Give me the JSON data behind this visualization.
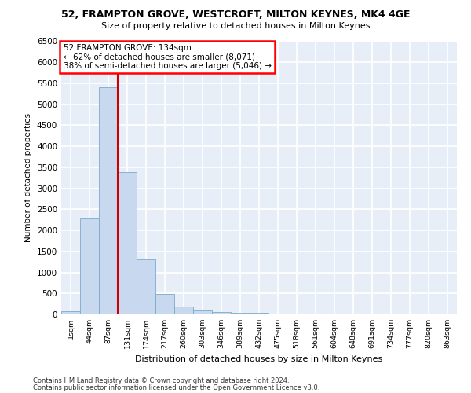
{
  "title_line1": "52, FRAMPTON GROVE, WESTCROFT, MILTON KEYNES, MK4 4GE",
  "title_line2": "Size of property relative to detached houses in Milton Keynes",
  "xlabel": "Distribution of detached houses by size in Milton Keynes",
  "ylabel": "Number of detached properties",
  "footnote1": "Contains HM Land Registry data © Crown copyright and database right 2024.",
  "footnote2": "Contains public sector information licensed under the Open Government Licence v3.0.",
  "bar_labels": [
    "1sqm",
    "44sqm",
    "87sqm",
    "131sqm",
    "174sqm",
    "217sqm",
    "260sqm",
    "303sqm",
    "346sqm",
    "389sqm",
    "432sqm",
    "475sqm",
    "518sqm",
    "561sqm",
    "604sqm",
    "648sqm",
    "691sqm",
    "734sqm",
    "777sqm",
    "820sqm",
    "863sqm"
  ],
  "bar_values": [
    80,
    2300,
    5400,
    3380,
    1310,
    480,
    190,
    90,
    50,
    40,
    30,
    20,
    0,
    0,
    0,
    0,
    0,
    0,
    0,
    0,
    0
  ],
  "bar_color": "#c8d8ee",
  "bar_edge_color": "#7aaacc",
  "highlight_color": "#cc0000",
  "red_line_x": 2.5,
  "ylim_max": 6500,
  "ytick_step": 500,
  "annotation_text": "52 FRAMPTON GROVE: 134sqm\n← 62% of detached houses are smaller (8,071)\n38% of semi-detached houses are larger (5,046) →",
  "bg_color": "#e8eef8",
  "grid_color": "#ffffff"
}
